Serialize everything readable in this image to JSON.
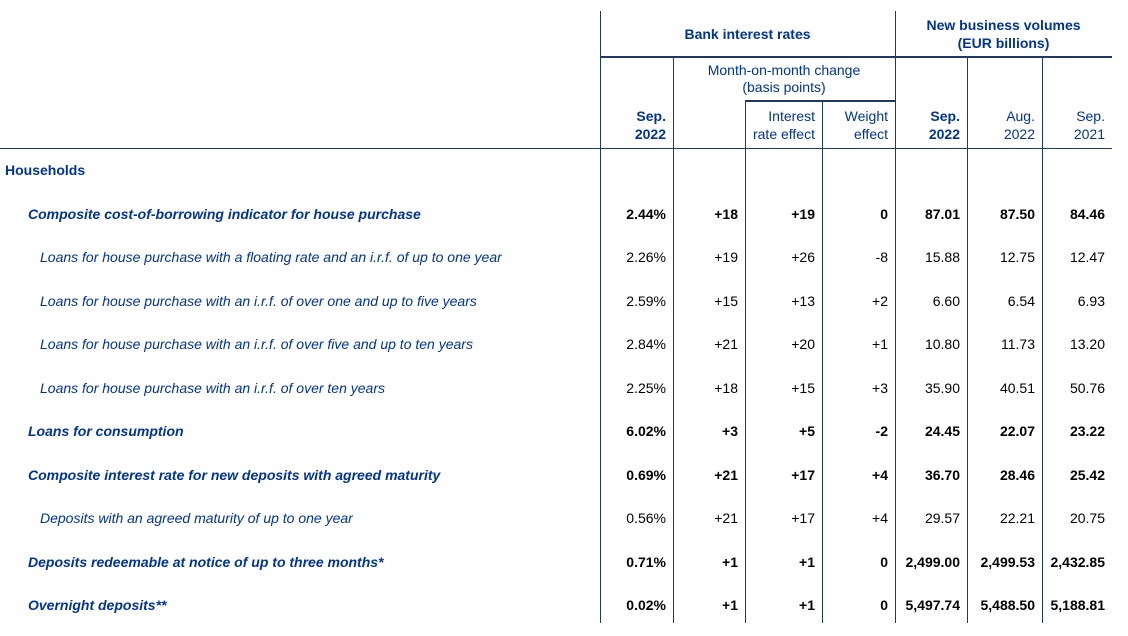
{
  "colors": {
    "text_blue": "#003399",
    "border_navy": "#1f3864",
    "value_black": "#000000",
    "background": "#ffffff"
  },
  "header": {
    "bank_interest_rates": "Bank interest rates",
    "new_business_volumes": [
      "New business volumes",
      "(EUR billions)"
    ],
    "mom_change": [
      "Month-on-month change",
      "(basis points)"
    ],
    "columns": {
      "rate_sep_2022": [
        "Sep.",
        "2022"
      ],
      "interest_rate_effect": [
        "Interest",
        "rate effect"
      ],
      "weight_effect": [
        "Weight",
        "effect"
      ],
      "volume_sep_2022": [
        "Sep.",
        "2022"
      ],
      "volume_aug_2022": [
        "Aug.",
        "2022"
      ],
      "volume_sep_2021": [
        "Sep.",
        "2021"
      ]
    }
  },
  "rows": [
    {
      "label": "Households",
      "style": "section",
      "values": []
    },
    {
      "label": "Composite cost-of-borrowing indicator for house purchase",
      "style": "bold",
      "values": [
        "2.44%",
        "+18",
        "+19",
        "0",
        "87.01",
        "87.50",
        "84.46"
      ]
    },
    {
      "label": "Loans for house purchase with a floating rate and an i.r.f. of up to one year",
      "style": "plain",
      "values": [
        "2.26%",
        "+19",
        "+26",
        "-8",
        "15.88",
        "12.75",
        "12.47"
      ]
    },
    {
      "label": "Loans for house purchase with an i.r.f. of over one and up to five years",
      "style": "plain",
      "values": [
        "2.59%",
        "+15",
        "+13",
        "+2",
        "6.60",
        "6.54",
        "6.93"
      ]
    },
    {
      "label": "Loans for house purchase with an i.r.f. of over five and up to ten years",
      "style": "plain",
      "values": [
        "2.84%",
        "+21",
        "+20",
        "+1",
        "10.80",
        "11.73",
        "13.20"
      ]
    },
    {
      "label": "Loans for house purchase with an i.r.f. of over ten years",
      "style": "plain",
      "values": [
        "2.25%",
        "+18",
        "+15",
        "+3",
        "35.90",
        "40.51",
        "50.76"
      ]
    },
    {
      "label": "Loans for consumption",
      "style": "bold",
      "values": [
        "6.02%",
        "+3",
        "+5",
        "-2",
        "24.45",
        "22.07",
        "23.22"
      ]
    },
    {
      "label": "Composite interest rate for new deposits with agreed maturity",
      "style": "bold",
      "values": [
        "0.69%",
        "+21",
        "+17",
        "+4",
        "36.70",
        "28.46",
        "25.42"
      ]
    },
    {
      "label": "Deposits with an agreed maturity of up to one year",
      "style": "plain",
      "values": [
        "0.56%",
        "+21",
        "+17",
        "+4",
        "29.57",
        "22.21",
        "20.75"
      ]
    },
    {
      "label": "Deposits redeemable at notice of up to three months*",
      "style": "bold",
      "values": [
        "0.71%",
        "+1",
        "+1",
        "0",
        "2,499.00",
        "2,499.53",
        "2,432.85"
      ]
    },
    {
      "label": "Overnight deposits**",
      "style": "bold",
      "values": [
        "0.02%",
        "+1",
        "+1",
        "0",
        "5,497.74",
        "5,488.50",
        "5,188.81"
      ]
    }
  ]
}
